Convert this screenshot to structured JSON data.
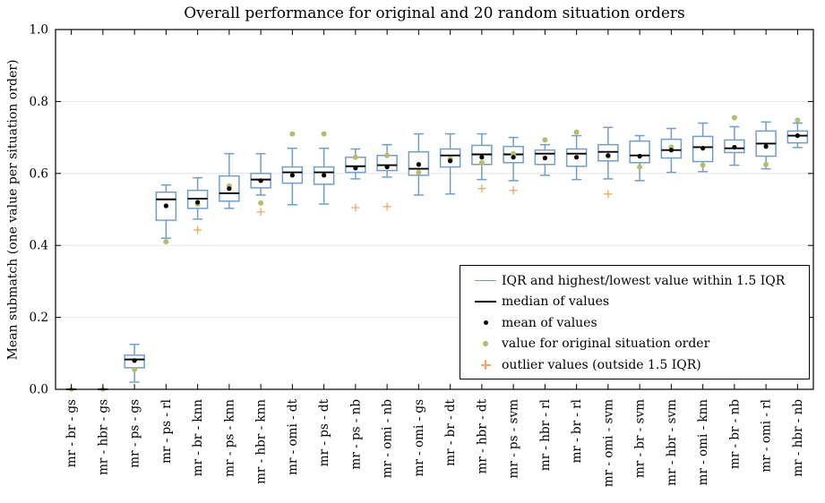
{
  "chart_data": {
    "type": "boxplot",
    "title": "Overall performance for original and 20 random situation orders",
    "ylabel": "Mean submatch (one value per situation order)",
    "xlabel": "",
    "ylim": [
      0.0,
      1.0
    ],
    "grid": "horizontal-light",
    "legend_position": "lower right",
    "colors": {
      "box": "#729ECE",
      "median": "#000000",
      "mean": "#000000",
      "original": "#B5BD6B",
      "outlier": "#F5A761",
      "grid": "#E6E6E6",
      "frame": "#000000"
    },
    "yticks": [
      {
        "v": 0.0,
        "label": "0.0"
      },
      {
        "v": 0.2,
        "label": "0.2"
      },
      {
        "v": 0.4,
        "label": "0.4"
      },
      {
        "v": 0.6,
        "label": "0.6"
      },
      {
        "v": 0.8,
        "label": "0.8"
      },
      {
        "v": 1.0,
        "label": "1.0"
      }
    ],
    "legend": [
      {
        "marker": "iqr-line",
        "label": "IQR and highest/lowest value within 1.5 IQR"
      },
      {
        "marker": "median-line",
        "label": "median of values"
      },
      {
        "marker": "mean-dot",
        "label": "mean of values"
      },
      {
        "marker": "original-dot",
        "label": "value for original situation order"
      },
      {
        "marker": "outlier-plus",
        "label": "outlier values (outside 1.5 IQR)"
      }
    ],
    "boxes": [
      {
        "label": "mr - br - gs",
        "low": 0.0,
        "q1": 0.0,
        "median": 0.0,
        "q3": 0.0,
        "high": 0.0,
        "mean": 0.0,
        "original": 0.0,
        "outliers": []
      },
      {
        "label": "mr - hbr - gs",
        "low": 0.0,
        "q1": 0.0,
        "median": 0.0,
        "q3": 0.0,
        "high": 0.0,
        "mean": 0.0,
        "original": 0.0,
        "outliers": []
      },
      {
        "label": "mr - ps - gs",
        "low": 0.02,
        "q1": 0.06,
        "median": 0.083,
        "q3": 0.095,
        "high": 0.125,
        "mean": 0.08,
        "original": 0.055,
        "outliers": []
      },
      {
        "label": "mr - ps - rl",
        "low": 0.42,
        "q1": 0.47,
        "median": 0.528,
        "q3": 0.548,
        "high": 0.568,
        "mean": 0.51,
        "original": 0.41,
        "outliers": []
      },
      {
        "label": "mr - br - knn",
        "low": 0.473,
        "q1": 0.503,
        "median": 0.53,
        "q3": 0.553,
        "high": 0.588,
        "mean": 0.52,
        "original": 0.515,
        "outliers": [
          0.443
        ]
      },
      {
        "label": "mr - ps - knn",
        "low": 0.503,
        "q1": 0.523,
        "median": 0.545,
        "q3": 0.593,
        "high": 0.655,
        "mean": 0.558,
        "original": 0.565,
        "outliers": []
      },
      {
        "label": "mr - hbr - knn",
        "low": 0.54,
        "q1": 0.56,
        "median": 0.583,
        "q3": 0.6,
        "high": 0.655,
        "mean": 0.58,
        "original": 0.518,
        "outliers": [
          0.493
        ]
      },
      {
        "label": "mr - omi - dt",
        "low": 0.513,
        "q1": 0.573,
        "median": 0.603,
        "q3": 0.618,
        "high": 0.67,
        "mean": 0.595,
        "original": 0.71,
        "outliers": []
      },
      {
        "label": "mr - ps - dt",
        "low": 0.515,
        "q1": 0.57,
        "median": 0.603,
        "q3": 0.618,
        "high": 0.67,
        "mean": 0.595,
        "original": 0.71,
        "outliers": []
      },
      {
        "label": "mr - ps - nb",
        "low": 0.585,
        "q1": 0.603,
        "median": 0.62,
        "q3": 0.645,
        "high": 0.668,
        "mean": 0.615,
        "original": 0.645,
        "outliers": [
          0.505
        ]
      },
      {
        "label": "mr - omi - nb",
        "low": 0.59,
        "q1": 0.608,
        "median": 0.623,
        "q3": 0.65,
        "high": 0.68,
        "mean": 0.618,
        "original": 0.65,
        "outliers": [
          0.508
        ]
      },
      {
        "label": "mr - omi - gs",
        "low": 0.54,
        "q1": 0.595,
        "median": 0.613,
        "q3": 0.66,
        "high": 0.71,
        "mean": 0.625,
        "original": 0.603,
        "outliers": []
      },
      {
        "label": "mr - br - dt",
        "low": 0.543,
        "q1": 0.618,
        "median": 0.65,
        "q3": 0.668,
        "high": 0.71,
        "mean": 0.635,
        "original": 0.64,
        "outliers": []
      },
      {
        "label": "mr - hbr - dt",
        "low": 0.583,
        "q1": 0.625,
        "median": 0.653,
        "q3": 0.678,
        "high": 0.71,
        "mean": 0.645,
        "original": 0.63,
        "outliers": [
          0.558
        ]
      },
      {
        "label": "mr - ps - svm",
        "low": 0.58,
        "q1": 0.63,
        "median": 0.653,
        "q3": 0.675,
        "high": 0.7,
        "mean": 0.645,
        "original": 0.655,
        "outliers": [
          0.553
        ]
      },
      {
        "label": "mr - hbr - rl",
        "low": 0.595,
        "q1": 0.625,
        "median": 0.655,
        "q3": 0.665,
        "high": 0.68,
        "mean": 0.643,
        "original": 0.693,
        "outliers": []
      },
      {
        "label": "mr - br - rl",
        "low": 0.583,
        "q1": 0.62,
        "median": 0.655,
        "q3": 0.668,
        "high": 0.705,
        "mean": 0.645,
        "original": 0.715,
        "outliers": []
      },
      {
        "label": "mr - omi - svm",
        "low": 0.585,
        "q1": 0.635,
        "median": 0.66,
        "q3": 0.68,
        "high": 0.728,
        "mean": 0.65,
        "original": 0.648,
        "outliers": [
          0.543
        ]
      },
      {
        "label": "mr - br - svm",
        "low": 0.58,
        "q1": 0.63,
        "median": 0.65,
        "q3": 0.69,
        "high": 0.705,
        "mean": 0.648,
        "original": 0.618,
        "outliers": []
      },
      {
        "label": "mr - hbr - svm",
        "low": 0.603,
        "q1": 0.643,
        "median": 0.665,
        "q3": 0.695,
        "high": 0.725,
        "mean": 0.665,
        "original": 0.673,
        "outliers": []
      },
      {
        "label": "mr - omi - knn",
        "low": 0.605,
        "q1": 0.633,
        "median": 0.673,
        "q3": 0.703,
        "high": 0.74,
        "mean": 0.67,
        "original": 0.623,
        "outliers": []
      },
      {
        "label": "mr - br - nb",
        "low": 0.623,
        "q1": 0.658,
        "median": 0.67,
        "q3": 0.693,
        "high": 0.73,
        "mean": 0.673,
        "original": 0.755,
        "outliers": []
      },
      {
        "label": "mr - omi - rl",
        "low": 0.613,
        "q1": 0.648,
        "median": 0.683,
        "q3": 0.718,
        "high": 0.743,
        "mean": 0.675,
        "original": 0.625,
        "outliers": []
      },
      {
        "label": "mr - hbr - nb",
        "low": 0.672,
        "q1": 0.685,
        "median": 0.705,
        "q3": 0.718,
        "high": 0.74,
        "mean": 0.705,
        "original": 0.748,
        "outliers": []
      }
    ]
  }
}
